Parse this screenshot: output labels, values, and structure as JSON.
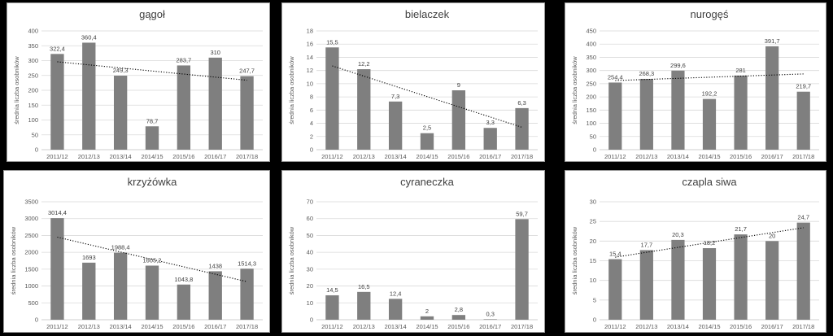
{
  "chart_data": [
    {
      "type": "bar",
      "title": "gągoł",
      "ylabel": "średnia liczba osobników",
      "categories": [
        "2011/12",
        "2012/13",
        "2013/14",
        "2014/15",
        "2015/16",
        "2016/17",
        "2017/18"
      ],
      "values": [
        322.4,
        360.4,
        249.3,
        78.7,
        283.7,
        310,
        247.7
      ],
      "labels": [
        "322,4",
        "360,4",
        "249,3",
        "78,7",
        "283,7",
        "310",
        "247,7"
      ],
      "ylim": [
        0,
        400
      ],
      "ystep": 50,
      "trend": {
        "start": 296,
        "end": 234
      }
    },
    {
      "type": "bar",
      "title": "bielaczek",
      "ylabel": "średnia liczba osobników",
      "categories": [
        "2011/12",
        "2012/13",
        "2013/14",
        "2014/15",
        "2015/16",
        "2016/17",
        "2017/18"
      ],
      "values": [
        15.5,
        12.2,
        7.3,
        2.5,
        9,
        3.3,
        6.3
      ],
      "labels": [
        "15,5",
        "12,2",
        "7,3",
        "2,5",
        "9",
        "3,3",
        "6,3"
      ],
      "ylim": [
        0,
        18
      ],
      "ystep": 2,
      "trend": {
        "start": 12.7,
        "end": 3.4
      }
    },
    {
      "type": "bar",
      "title": "nurogęś",
      "ylabel": "średnia liczba osobników",
      "categories": [
        "2011/12",
        "2012/13",
        "2013/14",
        "2014/15",
        "2015/16",
        "2016/17",
        "2017/18"
      ],
      "values": [
        254.4,
        268.3,
        299.6,
        192.2,
        281,
        391.7,
        219.7
      ],
      "labels": [
        "254,4",
        "268,3",
        "299,6",
        "192,2",
        "281",
        "391,7",
        "219,7"
      ],
      "ylim": [
        0,
        450
      ],
      "ystep": 50,
      "trend": {
        "start": 262,
        "end": 287
      }
    },
    {
      "type": "bar",
      "title": "krzyżówka",
      "ylabel": "średnia liczba osobników",
      "categories": [
        "2011/12",
        "2012/13",
        "2013/14",
        "2014/15",
        "2015/16",
        "2016/17",
        "2017/18"
      ],
      "values": [
        3014.4,
        1693,
        1988.4,
        1605.2,
        1043.8,
        1438,
        1514.3
      ],
      "labels": [
        "3014,4",
        "1693",
        "1988,4",
        "1605,2",
        "1043,8",
        "1438",
        "1514,3"
      ],
      "ylim": [
        0,
        3500
      ],
      "ystep": 500,
      "trend": {
        "start": 2450,
        "end": 1130
      }
    },
    {
      "type": "bar",
      "title": "cyraneczka",
      "ylabel": "średnia liczba osobników",
      "categories": [
        "2011/12",
        "2012/13",
        "2013/14",
        "2014/15",
        "2015/16",
        "2016/17",
        "2017/18"
      ],
      "values": [
        14.5,
        16.5,
        12.4,
        2,
        2.8,
        0.3,
        59.7
      ],
      "labels": [
        "14,5",
        "16,5",
        "12,4",
        "2",
        "2,8",
        "0,3",
        "59,7"
      ],
      "ylim": [
        0,
        70
      ],
      "ystep": 10,
      "trend": null
    },
    {
      "type": "bar",
      "title": "czapla siwa",
      "ylabel": "średnia liczba osobników",
      "categories": [
        "2011/12",
        "2012/13",
        "2013/14",
        "2014/15",
        "2015/16",
        "2016/17",
        "2017/18"
      ],
      "values": [
        15.4,
        17.7,
        20.3,
        18.2,
        21.7,
        20,
        24.7
      ],
      "labels": [
        "15,4",
        "17,7",
        "20,3",
        "18,2",
        "21,7",
        "20",
        "24,7"
      ],
      "ylim": [
        0,
        30
      ],
      "ystep": 5,
      "trend": {
        "start": 15.9,
        "end": 23.4
      }
    }
  ]
}
